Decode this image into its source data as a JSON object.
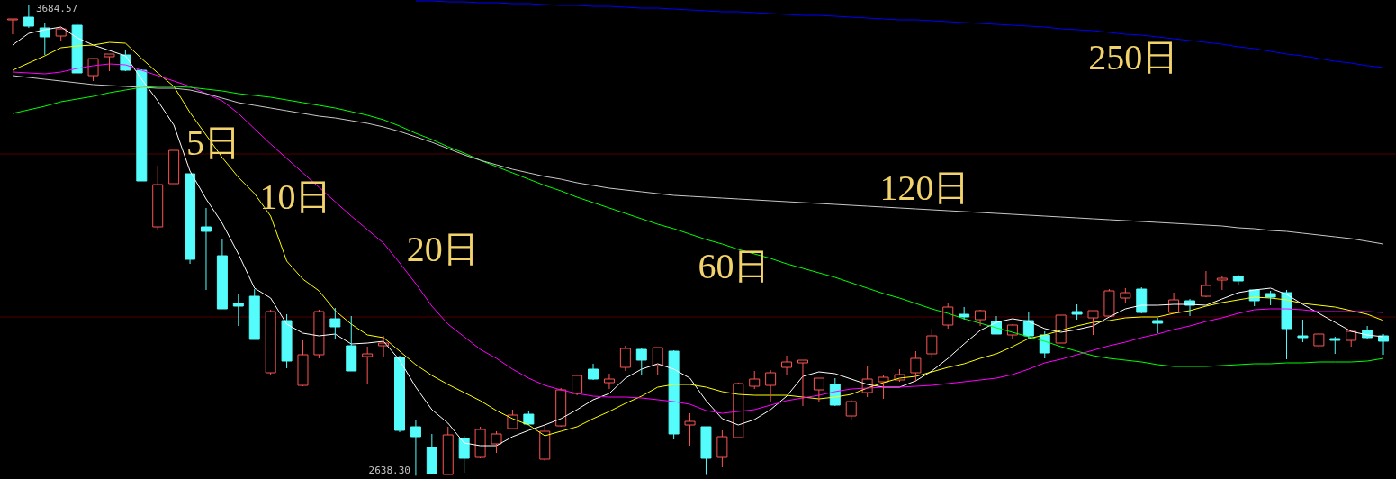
{
  "chart_data": {
    "type": "candlestick",
    "categories": [
      null,
      null,
      null,
      null,
      null,
      null,
      null,
      null,
      null,
      null,
      null,
      null,
      null,
      null,
      null,
      null,
      null,
      null,
      null,
      null,
      null,
      null,
      null,
      null,
      null,
      null,
      null,
      null,
      null,
      null,
      null,
      null,
      null,
      null,
      null,
      null,
      null,
      null,
      null,
      null,
      null,
      null,
      null,
      null,
      null,
      null,
      null,
      null,
      null,
      null,
      null,
      null,
      null,
      null,
      null,
      null,
      null,
      null,
      null,
      null,
      null,
      null,
      null,
      null,
      null,
      null,
      null,
      null,
      null,
      null,
      null,
      null,
      null,
      null,
      null,
      null,
      null,
      null,
      null,
      null,
      null,
      null,
      null,
      null,
      null,
      null
    ],
    "ylim": [
      2631,
      3695
    ],
    "ohlc": [
      [
        3651,
        3653,
        3619,
        3653
      ],
      [
        3657,
        3684.57,
        3633,
        3637
      ],
      [
        3633,
        3643,
        3573,
        3613
      ],
      [
        3615,
        3635,
        3603,
        3631
      ],
      [
        3639,
        3645,
        3533,
        3533
      ],
      [
        3527,
        3565,
        3515,
        3565
      ],
      [
        3569,
        3575,
        3537,
        3575
      ],
      [
        3573,
        3583,
        3537,
        3539
      ],
      [
        3539,
        3541,
        3293,
        3293
      ],
      [
        3191,
        3327,
        3185,
        3285
      ],
      [
        3287,
        3361,
        3287,
        3361
      ],
      [
        3309,
        3309,
        3109,
        3119
      ],
      [
        3191,
        3233,
        3051,
        3181
      ],
      [
        3127,
        3163,
        3009,
        3009
      ],
      [
        3021,
        3043,
        2971,
        3015
      ],
      [
        3037,
        3053,
        2941,
        2941
      ],
      [
        2867,
        3007,
        2861,
        3003
      ],
      [
        2983,
        2997,
        2877,
        2893
      ],
      [
        2839,
        2939,
        2837,
        2907
      ],
      [
        2907,
        3007,
        2899,
        3003
      ],
      [
        2987,
        3011,
        2943,
        2969
      ],
      [
        2927,
        2993,
        2871,
        2871
      ],
      [
        2903,
        2925,
        2843,
        2909
      ],
      [
        2927,
        2949,
        2903,
        2933
      ],
      [
        2901,
        2905,
        2735,
        2739
      ],
      [
        2747,
        2761,
        2638.3,
        2725
      ],
      [
        2701,
        2731,
        2641,
        2643
      ],
      [
        2641,
        2747,
        2641,
        2729
      ],
      [
        2721,
        2727,
        2645,
        2677
      ],
      [
        2679,
        2747,
        2677,
        2741
      ],
      [
        2709,
        2737,
        2689,
        2731
      ],
      [
        2743,
        2785,
        2741,
        2773
      ],
      [
        2775,
        2781,
        2751,
        2753
      ],
      [
        2675,
        2749,
        2671,
        2737
      ],
      [
        2749,
        2833,
        2747,
        2829
      ],
      [
        2821,
        2861,
        2817,
        2861
      ],
      [
        2875,
        2887,
        2851,
        2853
      ],
      [
        2845,
        2865,
        2831,
        2853
      ],
      [
        2879,
        2927,
        2871,
        2921
      ],
      [
        2919,
        2921,
        2863,
        2895
      ],
      [
        2883,
        2923,
        2863,
        2923
      ],
      [
        2915,
        2917,
        2719,
        2731
      ],
      [
        2751,
        2777,
        2705,
        2759
      ],
      [
        2747,
        2747,
        2640,
        2677
      ],
      [
        2679,
        2739,
        2657,
        2725
      ],
      [
        2723,
        2845,
        2721,
        2843
      ],
      [
        2837,
        2871,
        2831,
        2853
      ],
      [
        2839,
        2873,
        2801,
        2867
      ],
      [
        2879,
        2905,
        2863,
        2891
      ],
      [
        2889,
        2895,
        2793,
        2895
      ],
      [
        2829,
        2855,
        2801,
        2855
      ],
      [
        2841,
        2855,
        2793,
        2795
      ],
      [
        2771,
        2807,
        2763,
        2803
      ],
      [
        2823,
        2883,
        2813,
        2853
      ],
      [
        2847,
        2863,
        2809,
        2857
      ],
      [
        2851,
        2875,
        2847,
        2863
      ],
      [
        2867,
        2915,
        2847,
        2899
      ],
      [
        2909,
        2965,
        2899,
        2949
      ],
      [
        2973,
        3023,
        2965,
        3013
      ],
      [
        2997,
        3013,
        2985,
        2991
      ],
      [
        2985,
        3007,
        2971,
        3005
      ],
      [
        2981,
        2993,
        2953,
        2953
      ],
      [
        2951,
        2975,
        2943,
        2973
      ],
      [
        2983,
        3003,
        2941,
        2949
      ],
      [
        2951,
        2959,
        2899,
        2911
      ],
      [
        2933,
        2995,
        2933,
        2995
      ],
      [
        3003,
        3019,
        2985,
        2997
      ],
      [
        2989,
        3005,
        2951,
        3005
      ],
      [
        2993,
        3053,
        2991,
        3049
      ],
      [
        3033,
        3055,
        3021,
        3045
      ],
      [
        3053,
        3057,
        2999,
        3001
      ],
      [
        2983,
        2989,
        2955,
        2977
      ],
      [
        3001,
        3045,
        2999,
        3029
      ],
      [
        3027,
        3031,
        2993,
        3017
      ],
      [
        3037,
        3093,
        3035,
        3061
      ],
      [
        3073,
        3083,
        3051,
        3077
      ],
      [
        3081,
        3085,
        3061,
        3071
      ],
      [
        3051,
        3051,
        3015,
        3027
      ],
      [
        3043,
        3049,
        3017,
        3035
      ],
      [
        3045,
        3051,
        2897,
        2965
      ],
      [
        2949,
        2985,
        2935,
        2945
      ],
      [
        2927,
        2955,
        2919,
        2953
      ],
      [
        2943,
        2947,
        2909,
        2939
      ],
      [
        2939,
        2959,
        2925,
        2959
      ],
      [
        2961,
        2971,
        2941,
        2945
      ],
      [
        2949,
        2953,
        2907,
        2937
      ]
    ],
    "colors": [
      "#ff5454",
      "#54fcfc",
      "#54fcfc",
      "#ff5454",
      "#54fcfc",
      "#ff5454",
      "#ff5454",
      "#54fcfc",
      "#54fcfc",
      "#ff5454",
      "#ff5454",
      "#54fcfc",
      "#54fcfc",
      "#54fcfc",
      "#54fcfc",
      "#54fcfc",
      "#ff5454",
      "#54fcfc",
      "#ff5454",
      "#ff5454",
      "#54fcfc",
      "#54fcfc",
      "#ff5454",
      "#ff5454",
      "#54fcfc",
      "#54fcfc",
      "#54fcfc",
      "#ff5454",
      "#54fcfc",
      "#ff5454",
      "#ff5454",
      "#ff5454",
      "#54fcfc",
      "#ff5454",
      "#ff5454",
      "#ff5454",
      "#54fcfc",
      "#ff5454",
      "#ff5454",
      "#54fcfc",
      "#ff5454",
      "#54fcfc",
      "#ff5454",
      "#54fcfc",
      "#ff5454",
      "#ff5454",
      "#ff5454",
      "#ff5454",
      "#ff5454",
      "#ff5454",
      "#ff5454",
      "#54fcfc",
      "#ff5454",
      "#ff5454",
      "#ff5454",
      "#ff5454",
      "#ff5454",
      "#ff5454",
      "#ff5454",
      "#54fcfc",
      "#ff5454",
      "#54fcfc",
      "#ff5454",
      "#54fcfc",
      "#54fcfc",
      "#ff5454",
      "#54fcfc",
      "#ff5454",
      "#ff5454",
      "#ff5454",
      "#54fcfc",
      "#54fcfc",
      "#ff5454",
      "#54fcfc",
      "#ff5454",
      "#ff5454",
      "#54fcfc",
      "#54fcfc",
      "#54fcfc",
      "#54fcfc",
      "#54fcfc",
      "#ff5454",
      "#54fcfc",
      "#ff5454",
      "#54fcfc",
      "#54fcfc"
    ],
    "series": [
      {
        "name": "5日",
        "type": "line",
        "color": "#ffffff",
        "values": [
          3595,
          3621,
          3629,
          3635,
          3611,
          3595,
          3583,
          3571,
          3519,
          3471,
          3417,
          3315,
          3253,
          3199,
          3131,
          3055,
          3033,
          2975,
          2955,
          2949,
          2953,
          2931,
          2933,
          2937,
          2895,
          2835,
          2785,
          2755,
          2711,
          2705,
          2705,
          2725,
          2739,
          2751,
          2765,
          2785,
          2807,
          2821,
          2855,
          2875,
          2887,
          2875,
          2855,
          2805,
          2765,
          2751,
          2763,
          2785,
          2815,
          2859,
          2869,
          2865,
          2853,
          2841,
          2835,
          2835,
          2849,
          2871,
          2899,
          2931,
          2961,
          2979,
          2987,
          2981,
          2965,
          2957,
          2963,
          2971,
          2991,
          3009,
          3017,
          3017,
          3019,
          3019,
          3017,
          3031,
          3045,
          3051,
          3055,
          3041,
          3019,
          2999,
          2979,
          2959,
          2951,
          2947
        ]
      },
      {
        "name": "10日",
        "type": "line",
        "color": "#ffff00",
        "values": [
          3539,
          3555,
          3571,
          3589,
          3593,
          3595,
          3601,
          3599,
          3565,
          3533,
          3503,
          3445,
          3395,
          3345,
          3301,
          3265,
          3215,
          3115,
          3075,
          3049,
          3005,
          2975,
          2951,
          2945,
          2915,
          2885,
          2861,
          2841,
          2823,
          2805,
          2783,
          2765,
          2751,
          2727,
          2737,
          2747,
          2765,
          2781,
          2799,
          2815,
          2835,
          2841,
          2841,
          2835,
          2825,
          2819,
          2817,
          2817,
          2817,
          2813,
          2809,
          2813,
          2819,
          2833,
          2845,
          2855,
          2859,
          2869,
          2879,
          2887,
          2899,
          2909,
          2925,
          2943,
          2951,
          2961,
          2971,
          2979,
          2983,
          2989,
          2991,
          2991,
          2999,
          3005,
          3015,
          3023,
          3029,
          3035,
          3033,
          3029,
          3021,
          3017,
          3013,
          3005,
          2997,
          2983
        ]
      },
      {
        "name": "20日",
        "type": "line",
        "color": "#ff00ff",
        "values": [
          3535,
          3533,
          3531,
          3535,
          3543,
          3549,
          3553,
          3551,
          3539,
          3527,
          3515,
          3503,
          3487,
          3471,
          3443,
          3409,
          3375,
          3343,
          3311,
          3279,
          3247,
          3215,
          3185,
          3155,
          3111,
          3065,
          3015,
          2975,
          2947,
          2919,
          2899,
          2875,
          2855,
          2839,
          2829,
          2821,
          2815,
          2813,
          2813,
          2811,
          2807,
          2803,
          2797,
          2783,
          2777,
          2781,
          2785,
          2795,
          2805,
          2811,
          2817,
          2825,
          2831,
          2833,
          2835,
          2835,
          2837,
          2839,
          2843,
          2847,
          2851,
          2855,
          2863,
          2875,
          2889,
          2897,
          2907,
          2917,
          2927,
          2935,
          2945,
          2953,
          2963,
          2971,
          2981,
          2989,
          2999,
          3007,
          3009,
          3009,
          3007,
          3003,
          3003,
          3003,
          3003,
          3001
        ]
      },
      {
        "name": "60日",
        "type": "line",
        "color": "#00ff00",
        "values": [
          3443,
          3451,
          3459,
          3469,
          3475,
          3481,
          3489,
          3495,
          3501,
          3503,
          3503,
          3501,
          3497,
          3493,
          3487,
          3483,
          3479,
          3473,
          3467,
          3461,
          3455,
          3447,
          3439,
          3429,
          3415,
          3399,
          3385,
          3369,
          3355,
          3339,
          3325,
          3311,
          3297,
          3283,
          3271,
          3257,
          3245,
          3233,
          3221,
          3209,
          3197,
          3187,
          3175,
          3163,
          3153,
          3141,
          3131,
          3121,
          3109,
          3099,
          3089,
          3079,
          3067,
          3055,
          3043,
          3033,
          3021,
          3009,
          2999,
          2987,
          2977,
          2967,
          2957,
          2947,
          2937,
          2925,
          2915,
          2905,
          2899,
          2895,
          2891,
          2885,
          2881,
          2881,
          2881,
          2883,
          2885,
          2887,
          2887,
          2889,
          2889,
          2891,
          2891,
          2891,
          2893,
          2899
        ]
      },
      {
        "name": "120日",
        "type": "line",
        "color": "#c8c8c8",
        "values": [
          3527,
          3523,
          3519,
          3515,
          3511,
          3507,
          3505,
          3503,
          3501,
          3499,
          3499,
          3495,
          3487,
          3477,
          3467,
          3461,
          3455,
          3449,
          3443,
          3437,
          3433,
          3427,
          3421,
          3413,
          3403,
          3391,
          3379,
          3365,
          3351,
          3339,
          3329,
          3319,
          3311,
          3303,
          3297,
          3289,
          3283,
          3277,
          3273,
          3269,
          3265,
          3261,
          3259,
          3257,
          3255,
          3253,
          3251,
          3249,
          3247,
          3245,
          3243,
          3241,
          3239,
          3237,
          3235,
          3233,
          3231,
          3229,
          3227,
          3225,
          3223,
          3221,
          3219,
          3217,
          3215,
          3213,
          3211,
          3209,
          3207,
          3205,
          3203,
          3201,
          3199,
          3197,
          3195,
          3193,
          3189,
          3187,
          3183,
          3181,
          3177,
          3173,
          3169,
          3165,
          3159,
          3153
        ]
      },
      {
        "name": "250日",
        "type": "line",
        "color": "#0000ff",
        "values": [
          null,
          null,
          null,
          null,
          null,
          null,
          null,
          null,
          null,
          null,
          null,
          null,
          null,
          null,
          null,
          null,
          null,
          null,
          null,
          null,
          null,
          null,
          null,
          null,
          null,
          3693,
          3693,
          3691,
          3691,
          3689,
          3689,
          3687,
          3687,
          3685,
          3683,
          3683,
          3681,
          3681,
          3679,
          3677,
          3677,
          3675,
          3673,
          3671,
          3669,
          3669,
          3667,
          3665,
          3663,
          3661,
          3661,
          3659,
          3657,
          3655,
          3653,
          3651,
          3651,
          3649,
          3647,
          3645,
          3643,
          3641,
          3639,
          3637,
          3635,
          3631,
          3629,
          3627,
          3623,
          3619,
          3617,
          3613,
          3609,
          3605,
          3601,
          3597,
          3591,
          3587,
          3581,
          3575,
          3571,
          3565,
          3559,
          3555,
          3549,
          3545
        ]
      }
    ],
    "ref_lines": [
      {
        "axis": "y",
        "value": 3353,
        "color": "#500000"
      },
      {
        "axis": "y",
        "value": 2991,
        "color": "#500000"
      }
    ],
    "annotations": [
      "3684.57",
      "2638.30"
    ]
  }
}
